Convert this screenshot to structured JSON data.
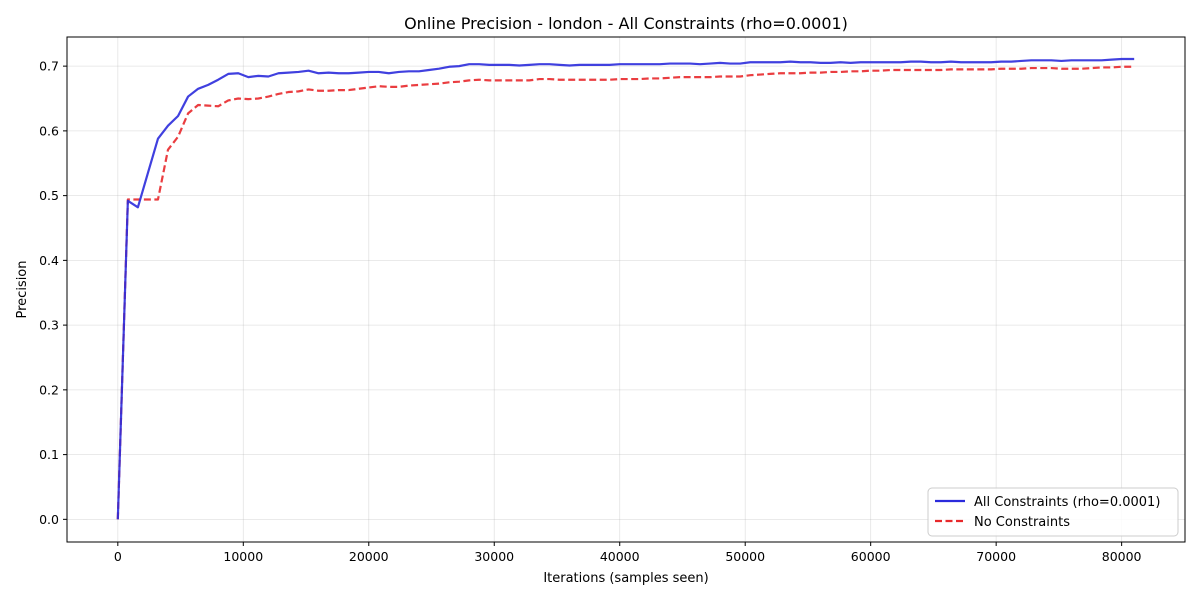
{
  "chart_data": {
    "type": "line",
    "title": "Online Precision - london - All Constraints (rho=0.0001)",
    "xlabel": "Iterations (samples seen)",
    "ylabel": "Precision",
    "xlim": [
      -4050,
      85050
    ],
    "ylim": [
      -0.035,
      0.745
    ],
    "xticks": [
      0,
      10000,
      20000,
      30000,
      40000,
      50000,
      60000,
      70000,
      80000
    ],
    "xtick_labels": [
      "0",
      "10000",
      "20000",
      "30000",
      "40000",
      "50000",
      "60000",
      "70000",
      "80000"
    ],
    "yticks": [
      0.0,
      0.1,
      0.2,
      0.3,
      0.4,
      0.5,
      0.6,
      0.7
    ],
    "ytick_labels": [
      "0.0",
      "0.1",
      "0.2",
      "0.3",
      "0.4",
      "0.5",
      "0.6",
      "0.7"
    ],
    "grid": true,
    "legend_position": "lower-right",
    "series": [
      {
        "name": "All Constraints (rho=0.0001)",
        "color": "#2b2bdc",
        "style": "solid",
        "points": [
          [
            0,
            0.0
          ],
          [
            800,
            0.492
          ],
          [
            1600,
            0.482
          ],
          [
            2400,
            0.535
          ],
          [
            3200,
            0.588
          ],
          [
            4000,
            0.608
          ],
          [
            4800,
            0.623
          ],
          [
            5600,
            0.653
          ],
          [
            6400,
            0.665
          ],
          [
            7200,
            0.671
          ],
          [
            8000,
            0.679
          ],
          [
            8800,
            0.688
          ],
          [
            9600,
            0.689
          ],
          [
            10400,
            0.683
          ],
          [
            11200,
            0.685
          ],
          [
            12000,
            0.684
          ],
          [
            12800,
            0.689
          ],
          [
            13600,
            0.69
          ],
          [
            14400,
            0.691
          ],
          [
            15200,
            0.693
          ],
          [
            16000,
            0.689
          ],
          [
            16800,
            0.69
          ],
          [
            17600,
            0.689
          ],
          [
            18400,
            0.689
          ],
          [
            19200,
            0.69
          ],
          [
            20000,
            0.691
          ],
          [
            20800,
            0.691
          ],
          [
            21600,
            0.689
          ],
          [
            22400,
            0.691
          ],
          [
            23200,
            0.692
          ],
          [
            24000,
            0.692
          ],
          [
            24800,
            0.694
          ],
          [
            25600,
            0.696
          ],
          [
            26400,
            0.699
          ],
          [
            27200,
            0.7
          ],
          [
            28000,
            0.703
          ],
          [
            28800,
            0.703
          ],
          [
            29600,
            0.702
          ],
          [
            30400,
            0.702
          ],
          [
            31200,
            0.702
          ],
          [
            32000,
            0.701
          ],
          [
            32800,
            0.702
          ],
          [
            33600,
            0.703
          ],
          [
            34400,
            0.703
          ],
          [
            35200,
            0.702
          ],
          [
            36000,
            0.701
          ],
          [
            36800,
            0.702
          ],
          [
            37600,
            0.702
          ],
          [
            38400,
            0.702
          ],
          [
            39200,
            0.702
          ],
          [
            40000,
            0.703
          ],
          [
            40800,
            0.703
          ],
          [
            41600,
            0.703
          ],
          [
            42400,
            0.703
          ],
          [
            43200,
            0.703
          ],
          [
            44000,
            0.704
          ],
          [
            44800,
            0.704
          ],
          [
            45600,
            0.704
          ],
          [
            46400,
            0.703
          ],
          [
            47200,
            0.704
          ],
          [
            48000,
            0.705
          ],
          [
            48800,
            0.704
          ],
          [
            49600,
            0.704
          ],
          [
            50400,
            0.706
          ],
          [
            51200,
            0.706
          ],
          [
            52000,
            0.706
          ],
          [
            52800,
            0.706
          ],
          [
            53600,
            0.707
          ],
          [
            54400,
            0.706
          ],
          [
            55200,
            0.706
          ],
          [
            56000,
            0.705
          ],
          [
            56800,
            0.705
          ],
          [
            57600,
            0.706
          ],
          [
            58400,
            0.705
          ],
          [
            59200,
            0.706
          ],
          [
            60000,
            0.706
          ],
          [
            60800,
            0.706
          ],
          [
            61600,
            0.706
          ],
          [
            62400,
            0.706
          ],
          [
            63200,
            0.707
          ],
          [
            64000,
            0.707
          ],
          [
            64800,
            0.706
          ],
          [
            65600,
            0.706
          ],
          [
            66400,
            0.707
          ],
          [
            67200,
            0.706
          ],
          [
            68000,
            0.706
          ],
          [
            68800,
            0.706
          ],
          [
            69600,
            0.706
          ],
          [
            70400,
            0.707
          ],
          [
            71200,
            0.707
          ],
          [
            72000,
            0.708
          ],
          [
            72800,
            0.709
          ],
          [
            73600,
            0.709
          ],
          [
            74400,
            0.709
          ],
          [
            75200,
            0.708
          ],
          [
            76000,
            0.709
          ],
          [
            76800,
            0.709
          ],
          [
            77600,
            0.709
          ],
          [
            78400,
            0.709
          ],
          [
            79200,
            0.71
          ],
          [
            80000,
            0.711
          ],
          [
            81000,
            0.711
          ]
        ]
      },
      {
        "name": "No Constraints",
        "color": "#e8282b",
        "style": "dashed",
        "points": [
          [
            0,
            0.0
          ],
          [
            800,
            0.494
          ],
          [
            1600,
            0.494
          ],
          [
            2400,
            0.494
          ],
          [
            3200,
            0.494
          ],
          [
            4000,
            0.571
          ],
          [
            4800,
            0.591
          ],
          [
            5600,
            0.627
          ],
          [
            6400,
            0.64
          ],
          [
            7200,
            0.639
          ],
          [
            8000,
            0.638
          ],
          [
            8800,
            0.647
          ],
          [
            9600,
            0.65
          ],
          [
            10400,
            0.649
          ],
          [
            11200,
            0.65
          ],
          [
            12000,
            0.653
          ],
          [
            12800,
            0.657
          ],
          [
            13600,
            0.66
          ],
          [
            14400,
            0.661
          ],
          [
            15200,
            0.664
          ],
          [
            16000,
            0.662
          ],
          [
            16800,
            0.662
          ],
          [
            17600,
            0.663
          ],
          [
            18400,
            0.663
          ],
          [
            19200,
            0.665
          ],
          [
            20000,
            0.667
          ],
          [
            20800,
            0.669
          ],
          [
            21600,
            0.668
          ],
          [
            22400,
            0.668
          ],
          [
            23200,
            0.67
          ],
          [
            24000,
            0.671
          ],
          [
            24800,
            0.672
          ],
          [
            25600,
            0.673
          ],
          [
            26400,
            0.675
          ],
          [
            27200,
            0.676
          ],
          [
            28000,
            0.678
          ],
          [
            28800,
            0.679
          ],
          [
            29600,
            0.678
          ],
          [
            30400,
            0.678
          ],
          [
            31200,
            0.678
          ],
          [
            32000,
            0.678
          ],
          [
            32800,
            0.678
          ],
          [
            33600,
            0.68
          ],
          [
            34400,
            0.68
          ],
          [
            35200,
            0.679
          ],
          [
            36000,
            0.679
          ],
          [
            36800,
            0.679
          ],
          [
            37600,
            0.679
          ],
          [
            38400,
            0.679
          ],
          [
            39200,
            0.679
          ],
          [
            40000,
            0.68
          ],
          [
            40800,
            0.68
          ],
          [
            41600,
            0.68
          ],
          [
            42400,
            0.681
          ],
          [
            43200,
            0.681
          ],
          [
            44000,
            0.682
          ],
          [
            44800,
            0.683
          ],
          [
            45600,
            0.683
          ],
          [
            46400,
            0.683
          ],
          [
            47200,
            0.683
          ],
          [
            48000,
            0.684
          ],
          [
            48800,
            0.684
          ],
          [
            49600,
            0.684
          ],
          [
            50400,
            0.686
          ],
          [
            51200,
            0.687
          ],
          [
            52000,
            0.688
          ],
          [
            52800,
            0.689
          ],
          [
            53600,
            0.689
          ],
          [
            54400,
            0.689
          ],
          [
            55200,
            0.69
          ],
          [
            56000,
            0.69
          ],
          [
            56800,
            0.691
          ],
          [
            57600,
            0.691
          ],
          [
            58400,
            0.692
          ],
          [
            59200,
            0.692
          ],
          [
            60000,
            0.693
          ],
          [
            60800,
            0.693
          ],
          [
            61600,
            0.694
          ],
          [
            62400,
            0.694
          ],
          [
            63200,
            0.694
          ],
          [
            64000,
            0.694
          ],
          [
            64800,
            0.694
          ],
          [
            65600,
            0.694
          ],
          [
            66400,
            0.695
          ],
          [
            67200,
            0.695
          ],
          [
            68000,
            0.695
          ],
          [
            68800,
            0.695
          ],
          [
            69600,
            0.695
          ],
          [
            70400,
            0.696
          ],
          [
            71200,
            0.696
          ],
          [
            72000,
            0.696
          ],
          [
            72800,
            0.697
          ],
          [
            73600,
            0.697
          ],
          [
            74400,
            0.697
          ],
          [
            75200,
            0.696
          ],
          [
            76000,
            0.696
          ],
          [
            76800,
            0.696
          ],
          [
            77600,
            0.697
          ],
          [
            78400,
            0.698
          ],
          [
            79200,
            0.698
          ],
          [
            80000,
            0.699
          ],
          [
            81000,
            0.699
          ]
        ]
      }
    ]
  }
}
